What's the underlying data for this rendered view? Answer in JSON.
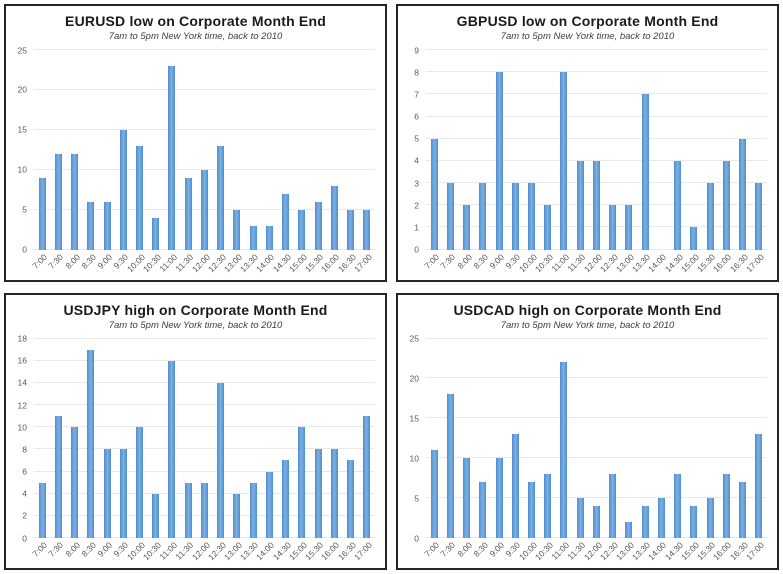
{
  "page": {
    "background": "#ffffff"
  },
  "styles": {
    "bar_color": "#5b9bd5",
    "bar_edge_color": "#4e8ed0",
    "grid_color": "#e8e8e8",
    "panel_border_color": "#262626",
    "title_color": "#1a1a1a",
    "subtitle_color": "#3d3d3d",
    "tick_label_color": "#595959"
  },
  "chart_data": [
    {
      "type": "bar",
      "title": "EURUSD low on Corporate Month End",
      "subtitle": "7am to 5pm New York time, back to 2010",
      "categories": [
        "7:00",
        "7:30",
        "8:00",
        "8:30",
        "9:00",
        "9:30",
        "10:00",
        "10:30",
        "11:00",
        "11:30",
        "12:00",
        "12:30",
        "13:00",
        "13:30",
        "14:00",
        "14:30",
        "15:00",
        "15:30",
        "16:00",
        "16:30",
        "17:00"
      ],
      "values": [
        9,
        12,
        12,
        6,
        6,
        15,
        13,
        4,
        23,
        9,
        10,
        13,
        5,
        3,
        3,
        7,
        5,
        6,
        8,
        5,
        5
      ],
      "xlabel": "",
      "ylabel": "",
      "ylim": [
        0,
        25
      ],
      "yticks": [
        0,
        5,
        10,
        15,
        20,
        25
      ],
      "grid": true,
      "legend_position": "none"
    },
    {
      "type": "bar",
      "title": "GBPUSD low on Corporate Month End",
      "subtitle": "7am to 5pm New York time, back to 2010",
      "categories": [
        "7:00",
        "7:30",
        "8:00",
        "8:30",
        "9:00",
        "9:30",
        "10:00",
        "10:30",
        "11:00",
        "11:30",
        "12:00",
        "12:30",
        "13:00",
        "13:30",
        "14:00",
        "14:30",
        "15:00",
        "15:30",
        "16:00",
        "16:30",
        "17:00"
      ],
      "values": [
        5,
        3,
        2,
        3,
        8,
        3,
        3,
        2,
        8,
        4,
        4,
        2,
        2,
        7,
        0,
        4,
        1,
        3,
        4,
        5,
        3
      ],
      "xlabel": "",
      "ylabel": "",
      "ylim": [
        0,
        9
      ],
      "yticks": [
        0,
        1,
        2,
        3,
        4,
        5,
        6,
        7,
        8,
        9
      ],
      "grid": true,
      "legend_position": "none"
    },
    {
      "type": "bar",
      "title": "USDJPY high on Corporate Month End",
      "subtitle": "7am to 5pm New York time, back to 2010",
      "categories": [
        "7:00",
        "7:30",
        "8:00",
        "8:30",
        "9:00",
        "9:30",
        "10:00",
        "10:30",
        "11:00",
        "11:30",
        "12:00",
        "12:30",
        "13:00",
        "13:30",
        "14:00",
        "14:30",
        "15:00",
        "15:30",
        "16:00",
        "16:30",
        "17:00"
      ],
      "values": [
        5,
        11,
        10,
        17,
        8,
        8,
        10,
        4,
        16,
        5,
        5,
        14,
        4,
        5,
        6,
        7,
        10,
        8,
        8,
        7,
        11
      ],
      "xlabel": "",
      "ylabel": "",
      "ylim": [
        0,
        18
      ],
      "yticks": [
        0,
        2,
        4,
        6,
        8,
        10,
        12,
        14,
        16,
        18
      ],
      "grid": true,
      "legend_position": "none"
    },
    {
      "type": "bar",
      "title": "USDCAD high on Corporate Month End",
      "subtitle": "7am to 5pm New York time, back to 2010",
      "categories": [
        "7:00",
        "7:30",
        "8:00",
        "8:30",
        "9:00",
        "9:30",
        "10:00",
        "10:30",
        "11:00",
        "11:30",
        "12:00",
        "12:30",
        "13:00",
        "13:30",
        "14:00",
        "14:30",
        "15:00",
        "15:30",
        "16:00",
        "16:30",
        "17:00"
      ],
      "values": [
        11,
        18,
        10,
        7,
        10,
        13,
        7,
        8,
        22,
        5,
        4,
        8,
        2,
        4,
        5,
        8,
        4,
        5,
        8,
        7,
        13
      ],
      "xlabel": "",
      "ylabel": "",
      "ylim": [
        0,
        25
      ],
      "yticks": [
        0,
        5,
        10,
        15,
        20,
        25
      ],
      "grid": true,
      "legend_position": "none"
    }
  ]
}
